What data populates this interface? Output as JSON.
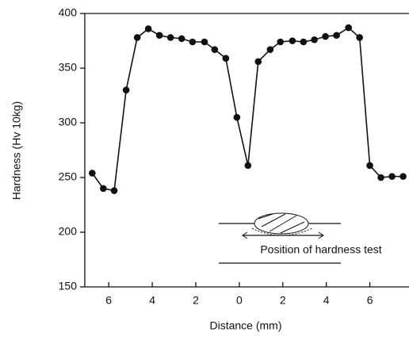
{
  "chart_data": {
    "type": "line",
    "color": "#111111",
    "xlabel": "Distance (mm)",
    "ylabel": "Hardness (Hv 10kg)",
    "annotation": "Position of hardness test",
    "x": [
      -6.76,
      -6.25,
      -5.75,
      -5.2,
      -4.69,
      -4.18,
      -3.67,
      -3.16,
      -2.65,
      -2.15,
      -1.6,
      -1.13,
      -0.62,
      -0.11,
      0.4,
      0.87,
      1.42,
      1.89,
      2.44,
      2.95,
      3.45,
      3.96,
      4.47,
      5.02,
      5.53,
      6.0,
      6.51,
      7.02,
      7.53
    ],
    "values": [
      254,
      240,
      238,
      330,
      378,
      386,
      380,
      378,
      377,
      374,
      374,
      367,
      359,
      305,
      261,
      356,
      367,
      374,
      375,
      374,
      376,
      379,
      380,
      387,
      378,
      261,
      250,
      251,
      251
    ],
    "xlim": [
      -7.1,
      7.8
    ],
    "xticks": [
      {
        "value": -6,
        "label": "6"
      },
      {
        "value": -4,
        "label": "4"
      },
      {
        "value": -2,
        "label": "2"
      },
      0,
      {
        "value": 2,
        "label": "2"
      },
      {
        "value": 4,
        "label": "4"
      },
      {
        "value": 6,
        "label": "6"
      }
    ],
    "ylim": [
      150,
      400
    ],
    "yticks": [
      150,
      200,
      250,
      300,
      350,
      400
    ]
  }
}
